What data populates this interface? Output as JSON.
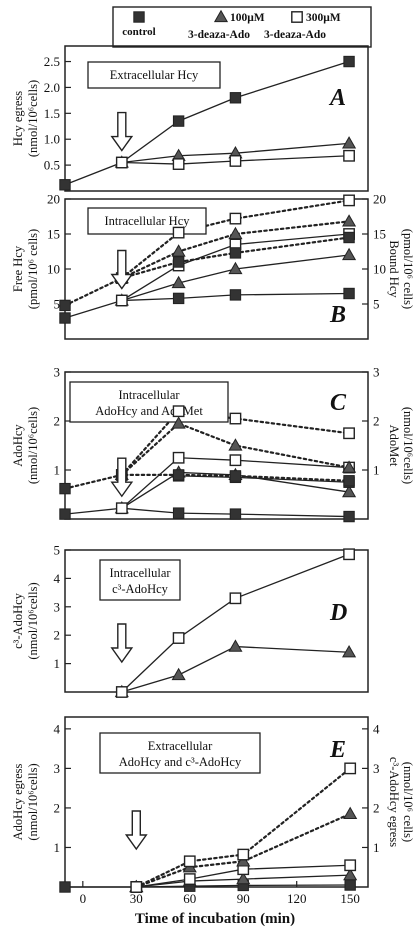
{
  "legend": {
    "items": [
      {
        "label_lines": [
          "control"
        ],
        "marker": "square-filled"
      },
      {
        "label_lines": [
          "100μM",
          "3-deaza-Ado"
        ],
        "marker": "triangle-filled"
      },
      {
        "label_lines": [
          "300μM",
          "3-deaza-Ado"
        ],
        "marker": "square-open"
      }
    ]
  },
  "chart_data": [
    {
      "letter": "A",
      "box_label_lines": [
        "Extracellular Hcy"
      ],
      "type": "line",
      "ylabel_left_lines": [
        "Hcy egress",
        "(nmol/10⁶cells)"
      ],
      "ylabel_right_lines": [],
      "xlim": [
        0,
        160
      ],
      "ylim": [
        0,
        2.8
      ],
      "yticks": [
        0.5,
        1.0,
        1.5,
        2.0,
        2.5
      ],
      "ytick_labels": [
        "0.5",
        "1.0",
        "1.5",
        "2.0",
        "2.5"
      ],
      "y2ticks": [],
      "y2tick_labels": [],
      "arrow_x": 30,
      "series": [
        {
          "marker": "square-filled",
          "style": "solid",
          "axis": "left",
          "x": [
            0,
            30,
            60,
            90,
            150
          ],
          "y": [
            0.12,
            0.55,
            1.35,
            1.8,
            2.5
          ]
        },
        {
          "marker": "triangle-filled",
          "style": "solid",
          "axis": "left",
          "x": [
            30,
            60,
            90,
            150
          ],
          "y": [
            0.55,
            0.68,
            0.73,
            0.92
          ]
        },
        {
          "marker": "square-open",
          "style": "solid",
          "axis": "left",
          "x": [
            30,
            60,
            90,
            150
          ],
          "y": [
            0.55,
            0.52,
            0.58,
            0.68
          ]
        }
      ]
    },
    {
      "letter": "B",
      "box_label_lines": [
        "Intracellular Hcy"
      ],
      "type": "line",
      "ylabel_left_lines": [
        "Free Hcy",
        "(pmol/10⁶ cells)"
      ],
      "ylabel_right_lines": [
        "Bound Hcy",
        "(pmol/10⁶ cells)"
      ],
      "xlim": [
        0,
        160
      ],
      "ylim": [
        0,
        20
      ],
      "yticks": [
        5,
        10,
        15,
        20
      ],
      "ytick_labels": [
        "5",
        "10",
        "15",
        "20"
      ],
      "y2ticks": [
        5,
        10,
        15,
        20
      ],
      "y2tick_labels": [
        "5",
        "10",
        "15",
        "20"
      ],
      "arrow_x": 30,
      "series": [
        {
          "marker": "square-filled",
          "style": "solid",
          "axis": "left",
          "x": [
            0,
            30,
            60,
            90,
            150
          ],
          "y": [
            3,
            5.5,
            5.8,
            6.3,
            6.5
          ]
        },
        {
          "marker": "triangle-filled",
          "style": "solid",
          "axis": "left",
          "x": [
            30,
            60,
            90,
            150
          ],
          "y": [
            5.5,
            8,
            10,
            12
          ]
        },
        {
          "marker": "square-open",
          "style": "solid",
          "axis": "left",
          "x": [
            30,
            60,
            90,
            150
          ],
          "y": [
            5.5,
            10.5,
            13.5,
            15
          ]
        },
        {
          "marker": "square-filled",
          "style": "dotted",
          "axis": "right",
          "x": [
            0,
            30,
            60,
            90,
            150
          ],
          "y": [
            4.8,
            8.7,
            11,
            12.3,
            14.5
          ]
        },
        {
          "marker": "triangle-filled",
          "style": "dotted",
          "axis": "right",
          "x": [
            30,
            60,
            90,
            150
          ],
          "y": [
            8.7,
            12.5,
            15,
            16.8
          ]
        },
        {
          "marker": "square-open",
          "style": "dotted",
          "axis": "right",
          "x": [
            30,
            60,
            90,
            150
          ],
          "y": [
            8.7,
            15.2,
            17.2,
            19.8
          ]
        }
      ]
    },
    {
      "letter": "C",
      "box_label_lines": [
        "Intracellular",
        "AdoHcy and AdoMet"
      ],
      "type": "line",
      "ylabel_left_lines": [
        "AdoHcy",
        "(nmol/10⁶cells)"
      ],
      "ylabel_right_lines": [
        "AdoMet",
        "(nmol/10⁶cells)"
      ],
      "xlim": [
        0,
        160
      ],
      "ylim": [
        0,
        3
      ],
      "yticks": [
        1,
        2,
        3
      ],
      "ytick_labels": [
        "1",
        "2",
        "3"
      ],
      "y2ticks": [
        1,
        2,
        3
      ],
      "y2tick_labels": [
        "1",
        "2",
        "3"
      ],
      "arrow_x": 30,
      "series": [
        {
          "marker": "square-filled",
          "style": "solid",
          "axis": "left",
          "x": [
            0,
            30,
            60,
            90,
            150
          ],
          "y": [
            0.1,
            0.22,
            0.12,
            0.1,
            0.05
          ]
        },
        {
          "marker": "triangle-filled",
          "style": "solid",
          "axis": "left",
          "x": [
            30,
            60,
            90,
            150
          ],
          "y": [
            0.22,
            0.95,
            0.9,
            0.55
          ]
        },
        {
          "marker": "square-open",
          "style": "solid",
          "axis": "left",
          "x": [
            30,
            60,
            90,
            150
          ],
          "y": [
            0.22,
            1.25,
            1.2,
            1.05
          ]
        },
        {
          "marker": "square-filled",
          "style": "solid",
          "axis": "left",
          "x": [
            60,
            90,
            150
          ],
          "y": [
            0.88,
            0.85,
            0.75
          ]
        },
        {
          "marker": "square-filled",
          "style": "dotted",
          "axis": "right",
          "x": [
            0,
            30,
            60,
            90,
            150
          ],
          "y": [
            0.62,
            0.9,
            0.9,
            0.88,
            0.78
          ]
        },
        {
          "marker": "triangle-filled",
          "style": "dotted",
          "axis": "right",
          "x": [
            30,
            60,
            90,
            150
          ],
          "y": [
            0.9,
            1.95,
            1.5,
            1.05
          ]
        },
        {
          "marker": "square-open",
          "style": "dotted",
          "axis": "right",
          "x": [
            30,
            60,
            90,
            150
          ],
          "y": [
            0.9,
            2.2,
            2.05,
            1.75
          ]
        }
      ]
    },
    {
      "letter": "D",
      "box_label_lines": [
        "Intracellular",
        "c³-AdoHcy"
      ],
      "type": "line",
      "ylabel_left_lines": [
        "c³-AdoHcy",
        "(nmol/10⁶cells)"
      ],
      "ylabel_right_lines": [],
      "xlim": [
        0,
        160
      ],
      "ylim": [
        0,
        5
      ],
      "yticks": [
        1,
        2,
        3,
        4,
        5
      ],
      "ytick_labels": [
        "1",
        "2",
        "3",
        "4",
        "5"
      ],
      "y2ticks": [],
      "y2tick_labels": [],
      "arrow_x": 30,
      "series": [
        {
          "marker": "triangle-filled",
          "style": "solid",
          "axis": "left",
          "x": [
            30,
            60,
            90,
            150
          ],
          "y": [
            0,
            0.6,
            1.6,
            1.4
          ]
        },
        {
          "marker": "square-open",
          "style": "solid",
          "axis": "left",
          "x": [
            30,
            60,
            90,
            150
          ],
          "y": [
            0,
            1.9,
            3.3,
            4.85
          ]
        }
      ]
    },
    {
      "letter": "E",
      "box_label_lines": [
        "Extracellular",
        "AdoHcy and c³-AdoHcy"
      ],
      "type": "line",
      "ylabel_left_lines": [
        "AdoHcy egress",
        "(nmol/10⁶cells)"
      ],
      "ylabel_right_lines": [
        "c³-AdoHcy egress",
        "(nmol/10⁶ cells)"
      ],
      "xlim": [
        -10,
        160
      ],
      "ylim": [
        0,
        4.3
      ],
      "yticks": [
        1,
        2,
        3,
        4
      ],
      "ytick_labels": [
        "1",
        "2",
        "3",
        "4"
      ],
      "y2ticks": [
        1,
        2,
        3,
        4
      ],
      "y2tick_labels": [
        "1",
        "2",
        "3",
        "4"
      ],
      "xticks": [
        0,
        30,
        60,
        90,
        120,
        150
      ],
      "xtick_labels": [
        "0",
        "30",
        "60",
        "90",
        "120",
        "150"
      ],
      "xlabel": "Time of incubation (min)",
      "arrow_x": 30,
      "series": [
        {
          "marker": "square-filled",
          "style": "solid",
          "axis": "left",
          "x": [
            -10,
            30,
            60,
            90,
            150
          ],
          "y": [
            0,
            0,
            0.02,
            0.04,
            0.05
          ]
        },
        {
          "marker": "triangle-filled",
          "style": "solid",
          "axis": "left",
          "x": [
            30,
            60,
            90,
            150
          ],
          "y": [
            0,
            0.15,
            0.2,
            0.3
          ]
        },
        {
          "marker": "square-open",
          "style": "solid",
          "axis": "left",
          "x": [
            30,
            60,
            90,
            150
          ],
          "y": [
            0,
            0.2,
            0.45,
            0.55
          ]
        },
        {
          "marker": "triangle-filled",
          "style": "dotted",
          "axis": "right",
          "x": [
            30,
            60,
            90,
            150
          ],
          "y": [
            0,
            0.5,
            0.65,
            1.85
          ]
        },
        {
          "marker": "square-open",
          "style": "dotted",
          "axis": "right",
          "x": [
            30,
            60,
            90,
            150
          ],
          "y": [
            0,
            0.65,
            0.82,
            3.0
          ]
        }
      ]
    }
  ]
}
